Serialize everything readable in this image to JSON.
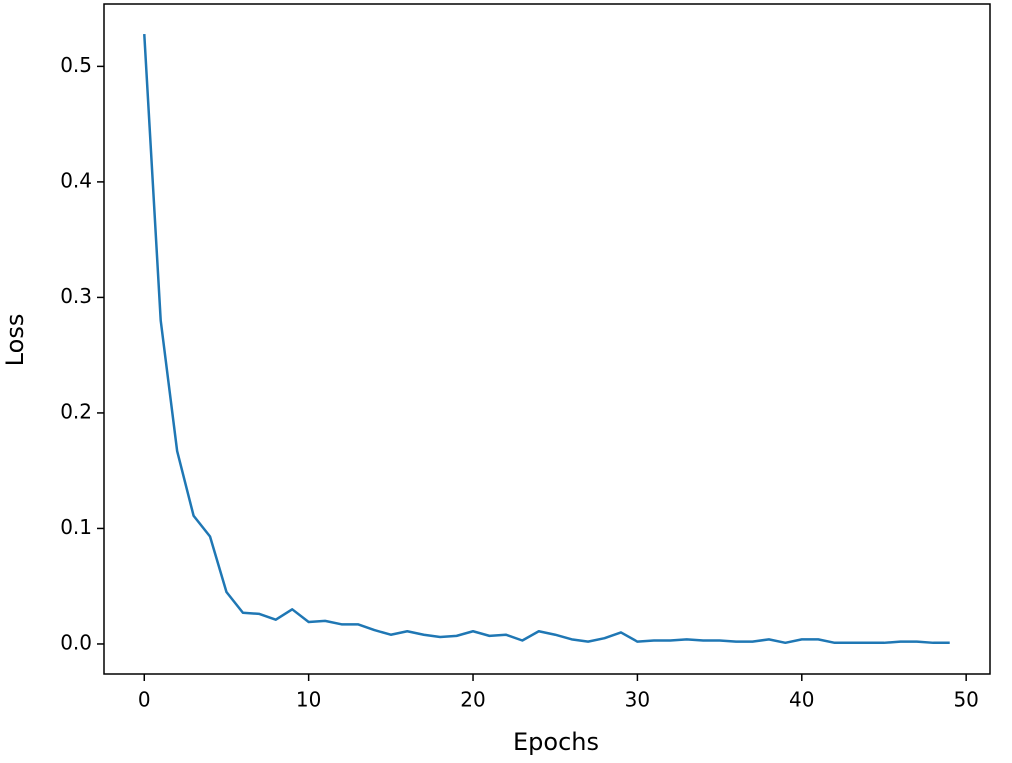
{
  "chart_data": {
    "type": "line",
    "xlabel": "Epochs",
    "ylabel": "Loss",
    "x": [
      0,
      1,
      2,
      3,
      4,
      5,
      6,
      7,
      8,
      9,
      10,
      11,
      12,
      13,
      14,
      15,
      16,
      17,
      18,
      19,
      20,
      21,
      22,
      23,
      24,
      25,
      26,
      27,
      28,
      29,
      30,
      31,
      32,
      33,
      34,
      35,
      36,
      37,
      38,
      39,
      40,
      41,
      42,
      43,
      44,
      45,
      46,
      47,
      48,
      49
    ],
    "series": [
      {
        "color": "#1f77b4",
        "values": [
          0.528,
          0.28,
          0.167,
          0.111,
          0.093,
          0.045,
          0.027,
          0.026,
          0.021,
          0.03,
          0.019,
          0.02,
          0.017,
          0.017,
          0.012,
          0.008,
          0.011,
          0.008,
          0.006,
          0.007,
          0.011,
          0.007,
          0.008,
          0.003,
          0.011,
          0.008,
          0.004,
          0.002,
          0.005,
          0.01,
          0.002,
          0.003,
          0.003,
          0.004,
          0.003,
          0.003,
          0.002,
          0.002,
          0.004,
          0.001,
          0.004,
          0.004,
          0.001,
          0.001,
          0.001,
          0.001,
          0.002,
          0.002,
          0.001,
          0.001
        ]
      }
    ],
    "xlim": [
      -2.45,
      51.45
    ],
    "xticks": [
      0,
      10,
      20,
      30,
      40,
      50
    ],
    "ylim": [
      -0.026,
      0.554
    ],
    "yticks": [
      {
        "value": 0,
        "label": "0.0"
      },
      0.1,
      0.2,
      0.3,
      0.4,
      0.5
    ]
  }
}
